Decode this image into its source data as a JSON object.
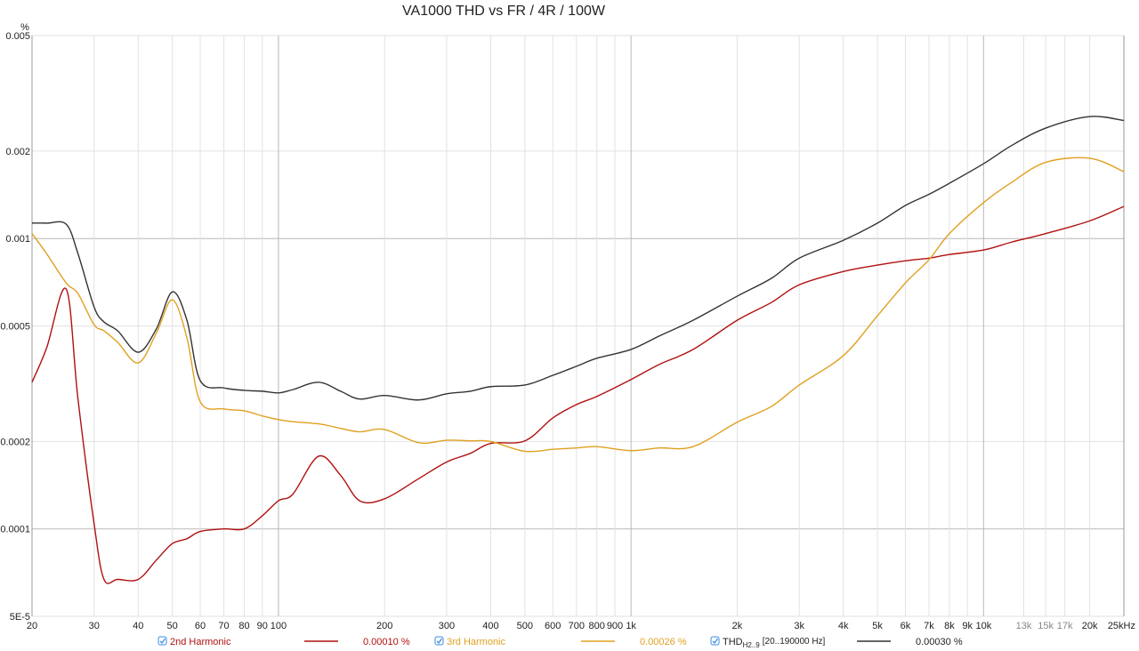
{
  "chart_data": {
    "type": "line",
    "title": "VA1000 THD vs FR / 4R / 100W",
    "y_label": "%",
    "log_x": true,
    "log_y": true,
    "grid": true,
    "x": [
      20,
      22,
      25,
      27,
      30,
      32,
      35,
      40,
      45,
      50,
      55,
      60,
      70,
      80,
      90,
      100,
      110,
      130,
      150,
      170,
      200,
      250,
      300,
      350,
      400,
      500,
      600,
      700,
      800,
      1000,
      1200,
      1500,
      2000,
      2500,
      3000,
      4000,
      5000,
      6000,
      7000,
      8000,
      10000,
      12000,
      15000,
      20000,
      25000
    ],
    "xlim": [
      20,
      25000
    ],
    "ylim": [
      5e-05,
      0.005
    ],
    "xticks": [
      20,
      30,
      40,
      50,
      60,
      70,
      80,
      90,
      100,
      200,
      300,
      400,
      500,
      600,
      700,
      800,
      900,
      {
        "value": 1000,
        "label": "1k"
      },
      {
        "value": 2000,
        "label": "2k"
      },
      {
        "value": 3000,
        "label": "3k"
      },
      {
        "value": 4000,
        "label": "4k"
      },
      {
        "value": 5000,
        "label": "5k"
      },
      {
        "value": 6000,
        "label": "6k"
      },
      {
        "value": 7000,
        "label": "7k"
      },
      {
        "value": 8000,
        "label": "8k"
      },
      {
        "value": 9000,
        "label": "9k"
      },
      {
        "value": 10000,
        "label": "10k"
      },
      {
        "value": 13000,
        "label": "13k"
      },
      {
        "value": 15000,
        "label": "15k"
      },
      {
        "value": 17000,
        "label": "17k"
      },
      {
        "value": 20000,
        "label": "20k"
      },
      {
        "value": 25000,
        "label": "25kHz"
      }
    ],
    "yticks": [
      0.005,
      0.002,
      0.001,
      0.0005,
      0.0002,
      0.0001,
      {
        "value": 5e-05,
        "label": "5E-5"
      }
    ],
    "series": [
      {
        "name": "2nd Harmonic",
        "color": "#b01010",
        "legend_value": "0.00010 %",
        "values": [
          0.00032,
          0.00042,
          0.00067,
          0.00028,
          0.000104,
          6.7e-05,
          6.7e-05,
          6.7e-05,
          7.8e-05,
          8.9e-05,
          9.25e-05,
          9.8e-05,
          0.0001,
          0.0001,
          0.000111,
          0.000125,
          0.000132,
          0.000178,
          0.000153,
          0.000125,
          0.000127,
          0.000149,
          0.00017,
          0.000182,
          0.000197,
          0.000201,
          0.000241,
          0.000268,
          0.000286,
          0.000327,
          0.000368,
          0.000415,
          0.000523,
          0.000602,
          0.000693,
          0.00077,
          0.00081,
          0.000838,
          0.000856,
          0.000881,
          0.000913,
          0.000972,
          0.00104,
          0.00115,
          0.00129
        ]
      },
      {
        "name": "3rd Harmonic",
        "color": "#e0a020",
        "legend_value": "0.00026 %",
        "values": [
          0.00104,
          0.000887,
          0.000703,
          0.000646,
          0.000505,
          0.000481,
          0.000439,
          0.000373,
          0.000471,
          0.000615,
          0.000455,
          0.000274,
          0.000259,
          0.000255,
          0.000245,
          0.000238,
          0.000234,
          0.00023,
          0.000222,
          0.000216,
          0.00022,
          0.000198,
          0.000202,
          0.000201,
          0.0002,
          0.000185,
          0.000188,
          0.00019,
          0.000192,
          0.000186,
          0.00019,
          0.000192,
          0.000233,
          0.000264,
          0.000313,
          0.000395,
          0.000542,
          0.000703,
          0.000845,
          0.00104,
          0.00133,
          0.00156,
          0.00183,
          0.00189,
          0.0017
        ]
      },
      {
        "name": "THD",
        "name_sub": "H2..9",
        "name_note": "[20..190000 Hz]",
        "color": "#333333",
        "legend_value": "0.00030 %",
        "values": [
          0.00113,
          0.00113,
          0.00112,
          0.000887,
          0.000581,
          0.000516,
          0.000481,
          0.000406,
          0.000487,
          0.000655,
          0.000523,
          0.000324,
          0.000306,
          0.0003,
          0.000298,
          0.000294,
          0.000302,
          0.00032,
          0.000298,
          0.00028,
          0.000288,
          0.000278,
          0.000292,
          0.000298,
          0.000309,
          0.000313,
          0.000338,
          0.000363,
          0.000387,
          0.000415,
          0.000461,
          0.000523,
          0.000633,
          0.000729,
          0.000856,
          0.000986,
          0.00113,
          0.0013,
          0.00142,
          0.00155,
          0.00181,
          0.00209,
          0.0024,
          0.00263,
          0.00255
        ]
      }
    ]
  }
}
